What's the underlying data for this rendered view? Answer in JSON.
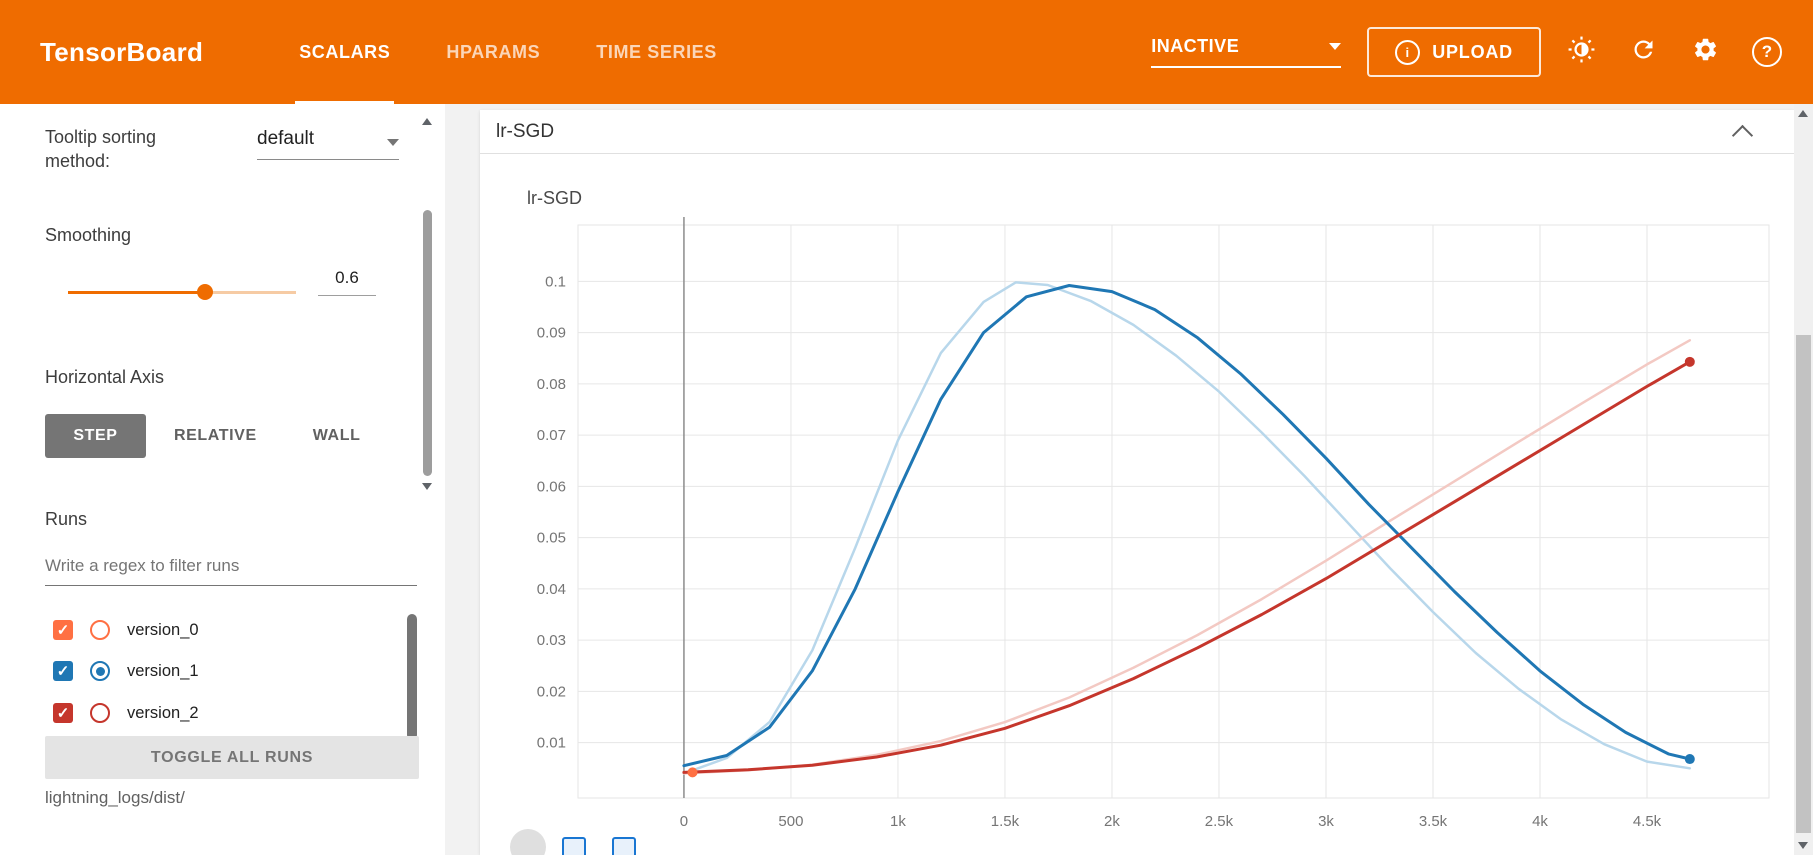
{
  "header": {
    "brand": "TensorBoard",
    "tabs": [
      {
        "label": "SCALARS",
        "active": true
      },
      {
        "label": "HPARAMS",
        "active": false
      },
      {
        "label": "TIME SERIES",
        "active": false
      }
    ],
    "status_dropdown": "INACTIVE",
    "upload_label": "UPLOAD",
    "icons": [
      "brightness-icon",
      "refresh-icon",
      "settings-icon",
      "help-icon"
    ],
    "accent_color": "#ef6c00"
  },
  "sidebar": {
    "tooltip_sorting": {
      "label": "Tooltip sorting method:",
      "value": "default"
    },
    "smoothing": {
      "label": "Smoothing",
      "value": "0.6",
      "percent": 60
    },
    "horizontal_axis": {
      "label": "Horizontal Axis",
      "options": [
        {
          "label": "STEP",
          "active": true
        },
        {
          "label": "RELATIVE",
          "active": false
        },
        {
          "label": "WALL",
          "active": false
        }
      ]
    },
    "runs": {
      "label": "Runs",
      "filter_placeholder": "Write a regex to filter runs",
      "items": [
        {
          "name": "version_0",
          "color": "#ff7043",
          "checked": true,
          "radio_selected": false
        },
        {
          "name": "version_1",
          "color": "#1f77b4",
          "checked": true,
          "radio_selected": true
        },
        {
          "name": "version_2",
          "color": "#c5362c",
          "checked": true,
          "radio_selected": false
        }
      ],
      "toggle_all_label": "TOGGLE ALL RUNS",
      "log_dir": "lightning_logs/dist/"
    }
  },
  "main": {
    "section_title": "lr-SGD"
  },
  "chart_data": {
    "type": "line",
    "title": "lr-SGD",
    "xlabel": "",
    "ylabel": "",
    "grid": true,
    "legend": "none",
    "x_domain": [
      -495,
      5070
    ],
    "y_domain": [
      -0.0008,
      0.111
    ],
    "zero_line_x": 0,
    "x_ticks": [
      {
        "v": 0,
        "label": "0"
      },
      {
        "v": 500,
        "label": "500"
      },
      {
        "v": 1000,
        "label": "1k"
      },
      {
        "v": 1500,
        "label": "1.5k"
      },
      {
        "v": 2000,
        "label": "2k"
      },
      {
        "v": 2500,
        "label": "2.5k"
      },
      {
        "v": 3000,
        "label": "3k"
      },
      {
        "v": 3500,
        "label": "3.5k"
      },
      {
        "v": 4000,
        "label": "4k"
      },
      {
        "v": 4500,
        "label": "4.5k"
      }
    ],
    "y_ticks": [
      {
        "v": 0.01,
        "label": "0.01"
      },
      {
        "v": 0.02,
        "label": "0.02"
      },
      {
        "v": 0.03,
        "label": "0.03"
      },
      {
        "v": 0.04,
        "label": "0.04"
      },
      {
        "v": 0.05,
        "label": "0.05"
      },
      {
        "v": 0.06,
        "label": "0.06"
      },
      {
        "v": 0.07,
        "label": "0.07"
      },
      {
        "v": 0.08,
        "label": "0.08"
      },
      {
        "v": 0.09,
        "label": "0.09"
      },
      {
        "v": 0.1,
        "label": "0.1"
      }
    ],
    "series": [
      {
        "name": "version_1 (raw)",
        "color": "#b8d7eb",
        "width": 2.5,
        "points": [
          [
            0,
            0.004
          ],
          [
            200,
            0.007
          ],
          [
            400,
            0.014
          ],
          [
            600,
            0.028
          ],
          [
            800,
            0.048
          ],
          [
            1000,
            0.069
          ],
          [
            1200,
            0.086
          ],
          [
            1400,
            0.096
          ],
          [
            1550,
            0.0998
          ],
          [
            1700,
            0.0993
          ],
          [
            1900,
            0.0962
          ],
          [
            2100,
            0.0915
          ],
          [
            2300,
            0.0855
          ],
          [
            2500,
            0.0785
          ],
          [
            2700,
            0.0705
          ],
          [
            2900,
            0.062
          ],
          [
            3100,
            0.053
          ],
          [
            3300,
            0.044
          ],
          [
            3500,
            0.0355
          ],
          [
            3700,
            0.0275
          ],
          [
            3900,
            0.0205
          ],
          [
            4100,
            0.0145
          ],
          [
            4300,
            0.0097
          ],
          [
            4500,
            0.0063
          ],
          [
            4700,
            0.005
          ]
        ]
      },
      {
        "name": "version_2 (raw)",
        "color": "#f3c9c3",
        "width": 2.5,
        "points": [
          [
            0,
            0.004
          ],
          [
            300,
            0.0046
          ],
          [
            600,
            0.0057
          ],
          [
            900,
            0.0076
          ],
          [
            1200,
            0.0103
          ],
          [
            1500,
            0.014
          ],
          [
            1800,
            0.0188
          ],
          [
            2100,
            0.0246
          ],
          [
            2400,
            0.031
          ],
          [
            2700,
            0.038
          ],
          [
            3000,
            0.0455
          ],
          [
            3300,
            0.0533
          ],
          [
            3600,
            0.061
          ],
          [
            3900,
            0.0687
          ],
          [
            4200,
            0.0763
          ],
          [
            4500,
            0.0838
          ],
          [
            4700,
            0.0885
          ]
        ]
      },
      {
        "name": "version_1 (smoothed 0.6)",
        "color": "#1f77b4",
        "width": 3,
        "points": [
          [
            0,
            0.0055
          ],
          [
            200,
            0.0075
          ],
          [
            400,
            0.013
          ],
          [
            600,
            0.024
          ],
          [
            800,
            0.04
          ],
          [
            1000,
            0.059
          ],
          [
            1200,
            0.077
          ],
          [
            1400,
            0.09
          ],
          [
            1600,
            0.097
          ],
          [
            1800,
            0.0992
          ],
          [
            2000,
            0.098
          ],
          [
            2200,
            0.0945
          ],
          [
            2400,
            0.089
          ],
          [
            2600,
            0.082
          ],
          [
            2800,
            0.074
          ],
          [
            3000,
            0.0655
          ],
          [
            3200,
            0.0565
          ],
          [
            3400,
            0.048
          ],
          [
            3600,
            0.0395
          ],
          [
            3800,
            0.0315
          ],
          [
            4000,
            0.024
          ],
          [
            4200,
            0.0175
          ],
          [
            4400,
            0.012
          ],
          [
            4600,
            0.0078
          ],
          [
            4700,
            0.0068
          ]
        ]
      },
      {
        "name": "version_2 (smoothed 0.6)",
        "color": "#c5362c",
        "width": 3,
        "points": [
          [
            0,
            0.0042
          ],
          [
            300,
            0.0047
          ],
          [
            600,
            0.0056
          ],
          [
            900,
            0.0072
          ],
          [
            1200,
            0.0095
          ],
          [
            1500,
            0.0128
          ],
          [
            1800,
            0.0172
          ],
          [
            2100,
            0.0225
          ],
          [
            2400,
            0.0285
          ],
          [
            2700,
            0.035
          ],
          [
            3000,
            0.042
          ],
          [
            3300,
            0.0495
          ],
          [
            3600,
            0.057
          ],
          [
            3900,
            0.0645
          ],
          [
            4200,
            0.072
          ],
          [
            4500,
            0.0795
          ],
          [
            4700,
            0.0843
          ]
        ]
      },
      {
        "name": "version_0",
        "color": "#ff7043",
        "width": 3,
        "points": [
          [
            40,
            0.0042
          ]
        ]
      }
    ],
    "end_dots": [
      {
        "x": 40,
        "y": 0.0042,
        "color": "#ff7043"
      },
      {
        "x": 4700,
        "y": 0.0843,
        "color": "#c5362c"
      },
      {
        "x": 4700,
        "y": 0.0068,
        "color": "#1f77b4"
      }
    ]
  }
}
